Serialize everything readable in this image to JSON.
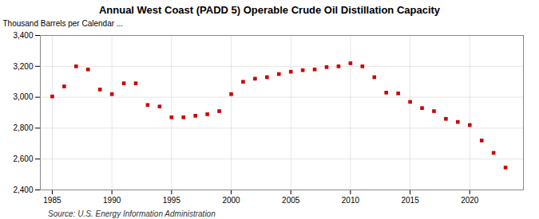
{
  "chart_data": {
    "type": "scatter",
    "title": "Annual West Coast (PADD 5) Operable Crude Oil Distillation Capacity",
    "ylabel": "Thousand Barrels per Calendar ...",
    "annotation": "Source: U.S. Energy Information Administration",
    "x": [
      1985,
      1986,
      1987,
      1988,
      1989,
      1990,
      1991,
      1992,
      1993,
      1994,
      1995,
      1996,
      1997,
      1998,
      1999,
      2000,
      2001,
      2002,
      2003,
      2004,
      2005,
      2006,
      2007,
      2008,
      2009,
      2010,
      2011,
      2012,
      2013,
      2014,
      2015,
      2016,
      2017,
      2018,
      2019,
      2020,
      2021,
      2022,
      2023
    ],
    "values": [
      3005,
      3070,
      3200,
      3180,
      3050,
      3020,
      3090,
      3090,
      2950,
      2940,
      2870,
      2870,
      2880,
      2890,
      2910,
      3020,
      3100,
      3120,
      3130,
      3150,
      3165,
      3175,
      3180,
      3195,
      3200,
      3220,
      3200,
      3130,
      3030,
      3025,
      2970,
      2930,
      2910,
      2860,
      2840,
      2820,
      2720,
      2640,
      2545
    ],
    "color": "#cc0000",
    "marker": "square",
    "xlim": [
      1984.0,
      2024.5
    ],
    "xticks": [
      1985,
      1990,
      1995,
      2000,
      2005,
      2010,
      2015,
      2020
    ],
    "ylim": [
      2400,
      3400
    ],
    "yticks": [
      {
        "value": 2400,
        "label": "2,400"
      },
      {
        "value": 2600,
        "label": "2,600"
      },
      {
        "value": 2800,
        "label": "2,800"
      },
      {
        "value": 3000,
        "label": "3,000"
      },
      {
        "value": 3200,
        "label": "3,200"
      },
      {
        "value": 3400,
        "label": "3,400"
      }
    ],
    "grid": true
  }
}
